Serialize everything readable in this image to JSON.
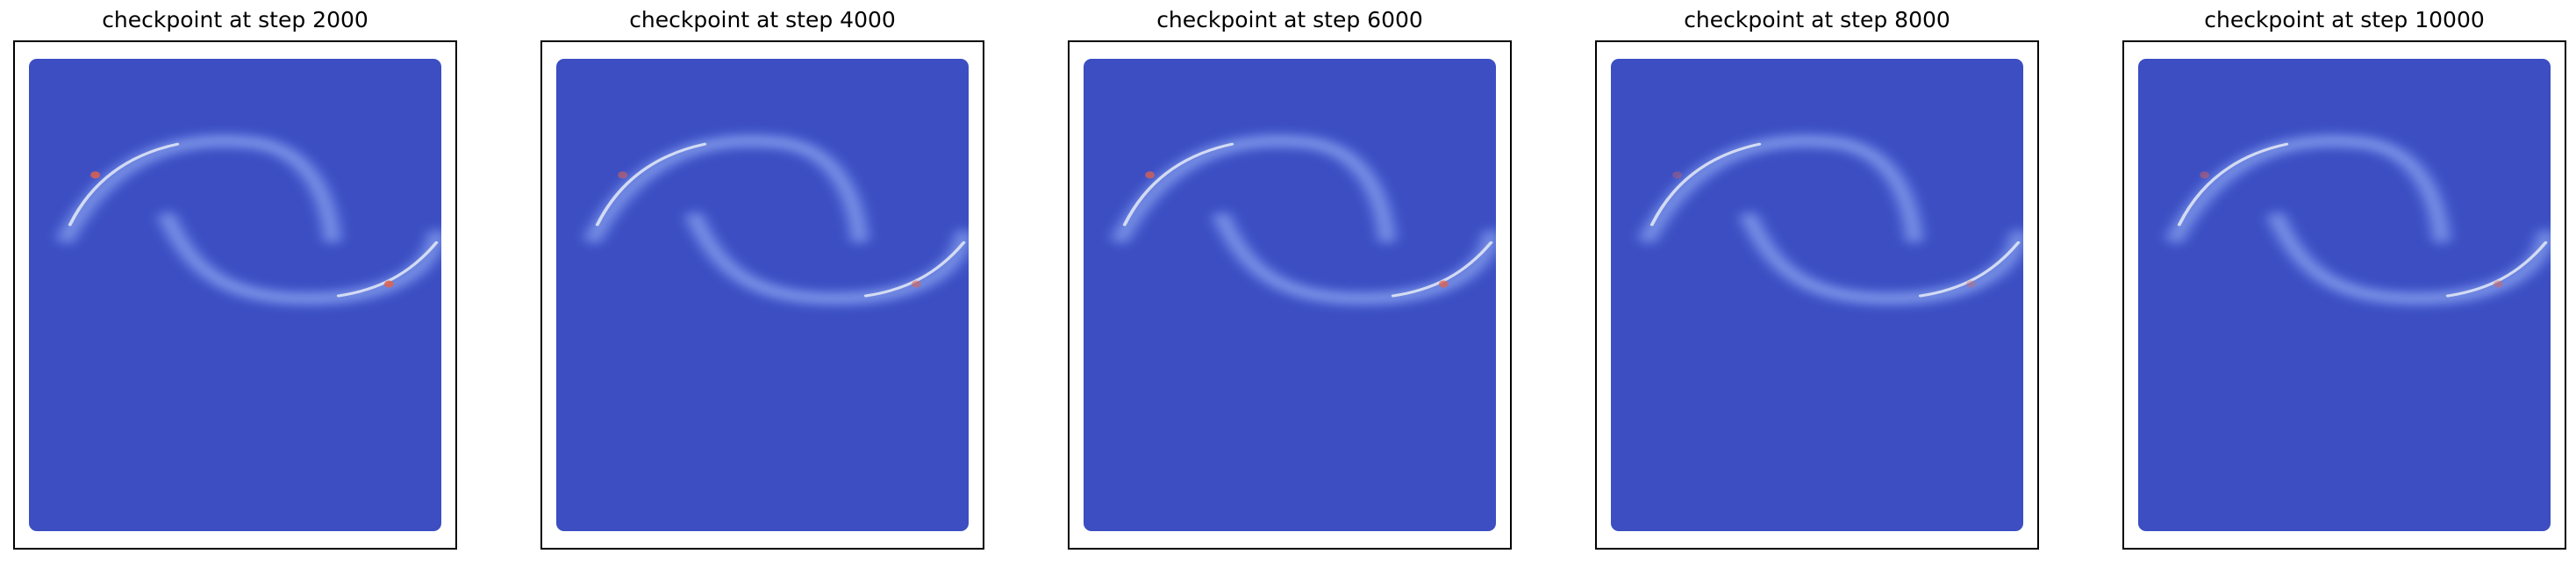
{
  "chart_data": [
    {
      "type": "heatmap",
      "title": "checkpoint at step 2000",
      "step": 2000,
      "colormap": "coolwarm",
      "background_color": "#3c4ec2",
      "ticks": false,
      "grid": false,
      "red_intensity": 0.85
    },
    {
      "type": "heatmap",
      "title": "checkpoint at step 4000",
      "step": 4000,
      "colormap": "coolwarm",
      "background_color": "#3c4ec2",
      "ticks": false,
      "grid": false,
      "red_intensity": 0.55
    },
    {
      "type": "heatmap",
      "title": "checkpoint at step 6000",
      "step": 6000,
      "colormap": "coolwarm",
      "background_color": "#3c4ec2",
      "ticks": false,
      "grid": false,
      "red_intensity": 0.75
    },
    {
      "type": "heatmap",
      "title": "checkpoint at step 8000",
      "step": 8000,
      "colormap": "coolwarm",
      "background_color": "#3c4ec2",
      "ticks": false,
      "grid": false,
      "red_intensity": 0.35
    },
    {
      "type": "heatmap",
      "title": "checkpoint at step 10000",
      "step": 10000,
      "colormap": "coolwarm",
      "background_color": "#3c4ec2",
      "ticks": false,
      "grid": false,
      "red_intensity": 0.45
    }
  ]
}
